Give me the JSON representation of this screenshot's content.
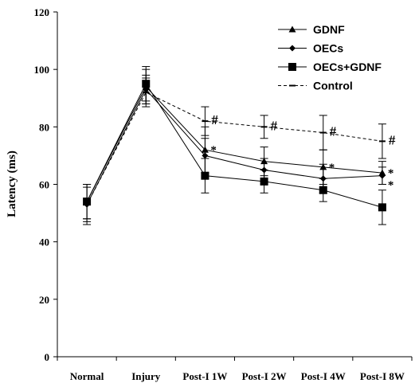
{
  "chart_data": {
    "type": "line",
    "title": "",
    "xlabel": "",
    "ylabel": "Latency (ms)",
    "ylim": [
      0,
      120
    ],
    "yticks": [
      0,
      20,
      40,
      60,
      80,
      100,
      120
    ],
    "grid": false,
    "legend_position": "top-right",
    "categories": [
      "Normal",
      "Injury",
      "Post-I 1W",
      "Post-I 2W",
      "Post-I 4W",
      "Post-I 8W"
    ],
    "series": [
      {
        "name": "GDNF",
        "marker": "triangle",
        "dashed": false,
        "color": "#000000",
        "values": [
          54,
          94,
          72,
          68,
          66,
          64
        ],
        "errors": [
          6,
          6,
          8,
          5,
          6,
          4
        ]
      },
      {
        "name": "OECs",
        "marker": "diamond",
        "dashed": false,
        "color": "#000000",
        "values": [
          53,
          93,
          70,
          65,
          62,
          63
        ],
        "errors": [
          6,
          5,
          6,
          4,
          5,
          3
        ]
      },
      {
        "name": "OECs+GDNF",
        "marker": "square",
        "dashed": false,
        "color": "#000000",
        "values": [
          54,
          95,
          63,
          61,
          58,
          52
        ],
        "errors": [
          6,
          6,
          6,
          4,
          4,
          6
        ]
      },
      {
        "name": "Control",
        "marker": "dash",
        "dashed": true,
        "color": "#000000",
        "values": [
          53,
          92,
          82,
          80,
          78,
          75
        ],
        "errors": [
          7,
          5,
          5,
          4,
          6,
          6
        ]
      }
    ],
    "annotations": [
      {
        "text": "#",
        "category": "Post-I 1W",
        "value": 82
      },
      {
        "text": "#",
        "category": "Post-I 2W",
        "value": 80
      },
      {
        "text": "#",
        "category": "Post-I 4W",
        "value": 78
      },
      {
        "text": "#",
        "category": "Post-I 8W",
        "value": 75
      },
      {
        "text": "*",
        "category": "Post-I 1W",
        "value": 72
      },
      {
        "text": "*",
        "category": "Post-I 4W",
        "value": 66
      },
      {
        "text": "*",
        "category": "Post-I 8W",
        "value": 64
      },
      {
        "text": "*",
        "category": "Post-I 8W",
        "value": 61
      }
    ]
  }
}
